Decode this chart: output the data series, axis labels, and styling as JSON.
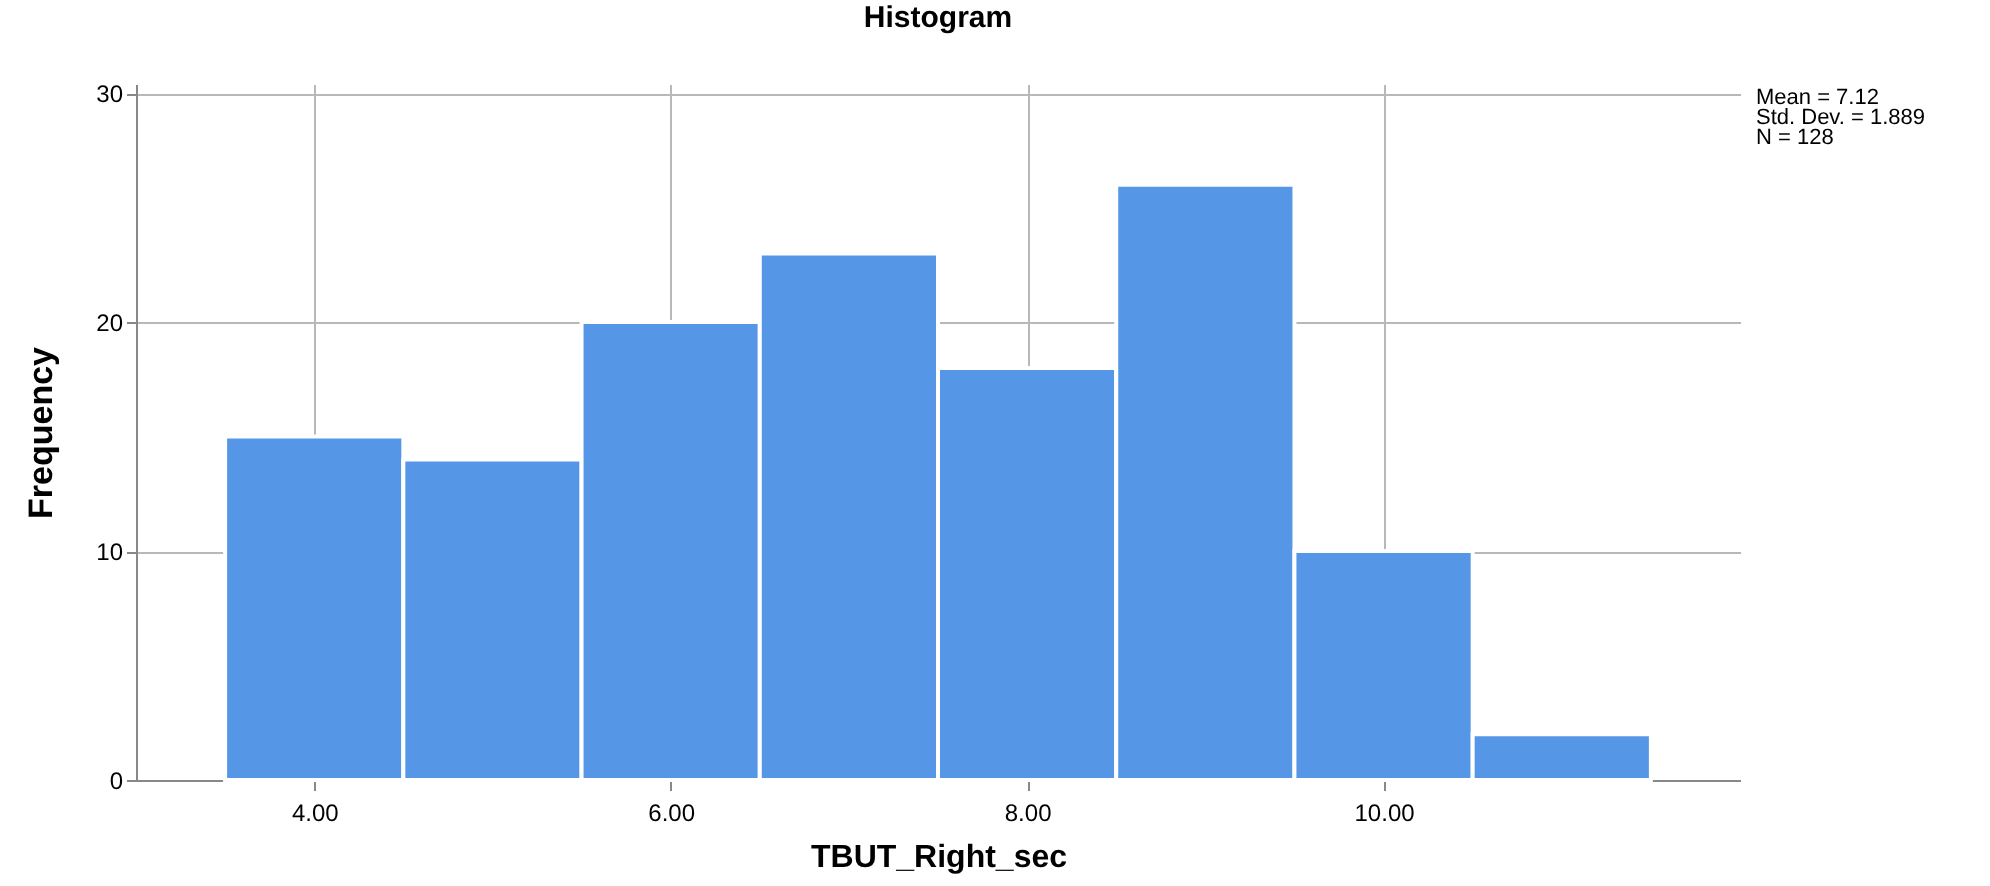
{
  "chart_data": {
    "type": "histogram",
    "title": "Histogram",
    "xlabel": "TBUT_Right_sec",
    "ylabel": "Frequency",
    "bins": [
      3.5,
      4.5,
      5.5,
      6.5,
      7.5,
      8.5,
      9.5,
      10.5,
      11.5
    ],
    "values": [
      15,
      14,
      20,
      23,
      18,
      26,
      10,
      2
    ],
    "color": "#5596e6",
    "xlim": [
      3,
      12
    ],
    "xticks": [
      {
        "value": 4,
        "label": "4.00"
      },
      {
        "value": 6,
        "label": "6.00"
      },
      {
        "value": 8,
        "label": "8.00"
      },
      {
        "value": 10,
        "label": "10.00"
      }
    ],
    "ylim": [
      0,
      30.4
    ],
    "yticks": [
      0,
      10,
      20,
      30
    ],
    "grid": true,
    "annotations": [
      "Mean = 7.12",
      "Std. Dev. = 1.889",
      "N = 128"
    ]
  }
}
